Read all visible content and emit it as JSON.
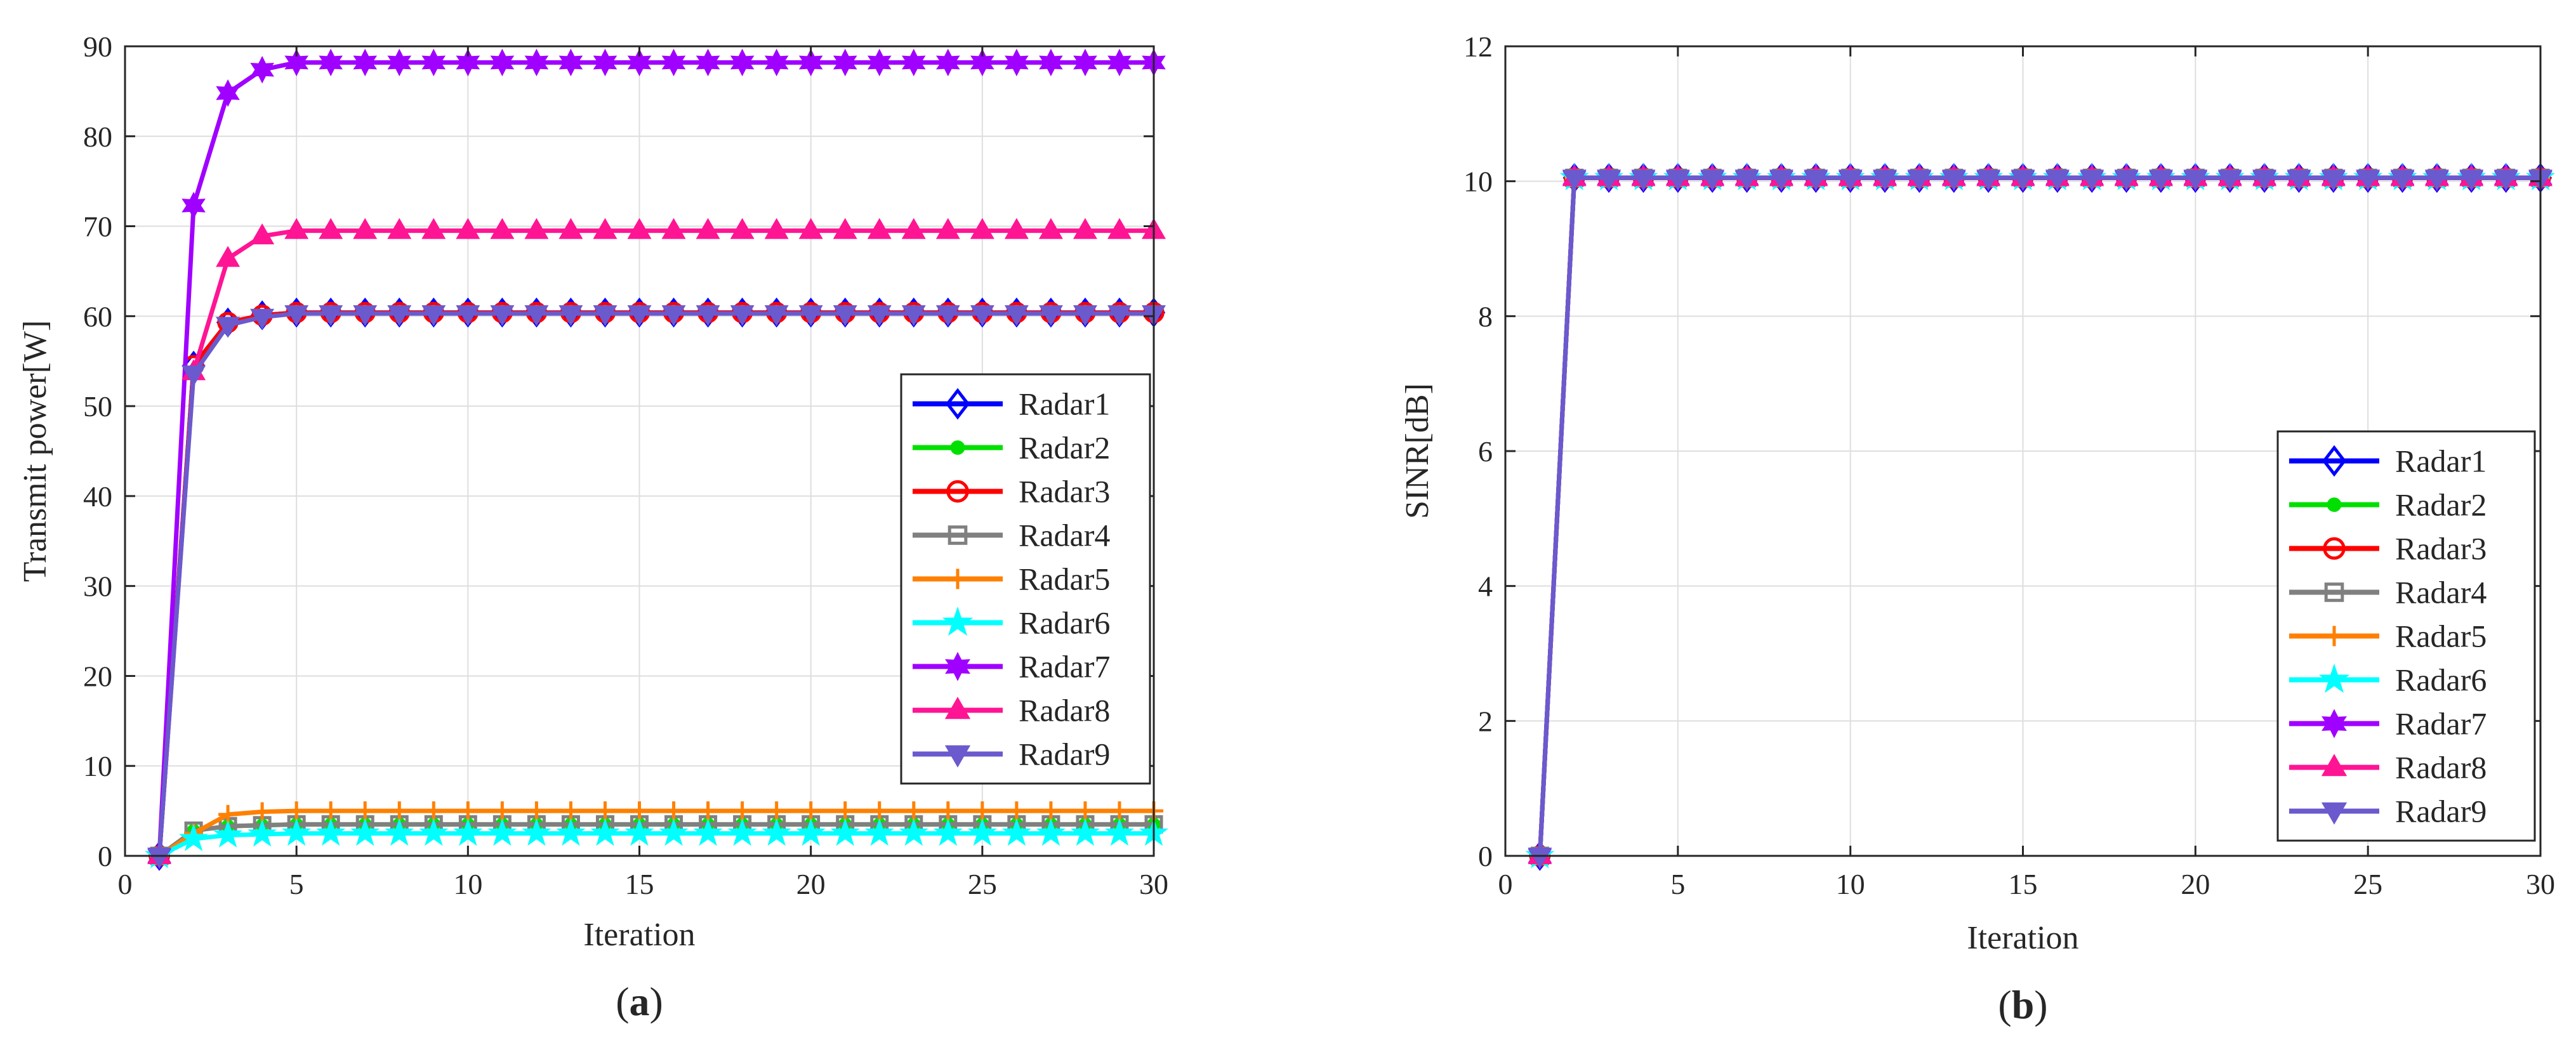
{
  "chart_data": [
    {
      "type": "line",
      "panel_label": "(a)",
      "panel_letter": "a",
      "xlabel": "Iteration",
      "ylabel": "Transmit power[W]",
      "xlim": [
        0,
        30
      ],
      "ylim": [
        0,
        90
      ],
      "xticks": [
        0,
        5,
        10,
        15,
        20,
        25,
        30
      ],
      "yticks": [
        0,
        10,
        20,
        30,
        40,
        50,
        60,
        70,
        80,
        90
      ],
      "grid": true,
      "legend_position": "center-right",
      "x": [
        1,
        2,
        3,
        4,
        5,
        6,
        7,
        8,
        9,
        10,
        11,
        12,
        13,
        14,
        15,
        16,
        17,
        18,
        19,
        20,
        21,
        22,
        23,
        24,
        25,
        26,
        27,
        28,
        29,
        30
      ],
      "series": [
        {
          "name": "Radar1",
          "color": "#0000ff",
          "marker": "diamond",
          "initial": [
            0,
            54.5,
            59.3,
            60.1
          ],
          "steady": 60.4
        },
        {
          "name": "Radar2",
          "color": "#00e000",
          "marker": "dot",
          "initial": [
            0,
            2.8,
            3.3,
            3.4
          ],
          "steady": 3.5
        },
        {
          "name": "Radar3",
          "color": "#ff0000",
          "marker": "circle",
          "initial": [
            0,
            54.5,
            59.3,
            60.1
          ],
          "steady": 60.4
        },
        {
          "name": "Radar4",
          "color": "#808080",
          "marker": "square",
          "initial": [
            0,
            2.8,
            3.3,
            3.4
          ],
          "steady": 3.5
        },
        {
          "name": "Radar5",
          "color": "#ff8000",
          "marker": "plus",
          "initial": [
            0,
            2.5,
            4.6,
            4.9
          ],
          "steady": 5.0
        },
        {
          "name": "Radar6",
          "color": "#00ffff",
          "marker": "star",
          "initial": [
            0,
            1.9,
            2.3,
            2.4
          ],
          "steady": 2.5
        },
        {
          "name": "Radar7",
          "color": "#a000ff",
          "marker": "hexstar",
          "initial": [
            0,
            72.3,
            84.8,
            87.4
          ],
          "steady": 88.2
        },
        {
          "name": "Radar8",
          "color": "#ff1493",
          "marker": "triangle-up",
          "initial": [
            0,
            53.8,
            66.4,
            68.9
          ],
          "steady": 69.5
        },
        {
          "name": "Radar9",
          "color": "#6a5acd",
          "marker": "triangle-down",
          "initial": [
            0,
            53.6,
            59.0,
            59.9
          ],
          "steady": 60.3
        }
      ]
    },
    {
      "type": "line",
      "panel_label": "(b)",
      "panel_letter": "b",
      "xlabel": "Iteration",
      "ylabel": "SINR[dB]",
      "xlim": [
        0,
        30
      ],
      "ylim": [
        0,
        12
      ],
      "xticks": [
        0,
        5,
        10,
        15,
        20,
        25,
        30
      ],
      "yticks": [
        0,
        2,
        4,
        6,
        8,
        10,
        12
      ],
      "grid": true,
      "legend_position": "bottom-right",
      "x": [
        1,
        2,
        3,
        4,
        5,
        6,
        7,
        8,
        9,
        10,
        11,
        12,
        13,
        14,
        15,
        16,
        17,
        18,
        19,
        20,
        21,
        22,
        23,
        24,
        25,
        26,
        27,
        28,
        29,
        30
      ],
      "series": [
        {
          "name": "Radar1",
          "color": "#0000ff",
          "marker": "diamond",
          "initial": [
            0
          ],
          "steady": 10.05
        },
        {
          "name": "Radar2",
          "color": "#00e000",
          "marker": "dot",
          "initial": [
            0
          ],
          "steady": 10.05
        },
        {
          "name": "Radar3",
          "color": "#ff0000",
          "marker": "circle",
          "initial": [
            0
          ],
          "steady": 10.05
        },
        {
          "name": "Radar4",
          "color": "#808080",
          "marker": "square",
          "initial": [
            0
          ],
          "steady": 10.05
        },
        {
          "name": "Radar5",
          "color": "#ff8000",
          "marker": "plus",
          "initial": [
            0
          ],
          "steady": 10.05
        },
        {
          "name": "Radar6",
          "color": "#00ffff",
          "marker": "star",
          "initial": [
            0
          ],
          "steady": 10.05
        },
        {
          "name": "Radar7",
          "color": "#a000ff",
          "marker": "hexstar",
          "initial": [
            0
          ],
          "steady": 10.05
        },
        {
          "name": "Radar8",
          "color": "#ff1493",
          "marker": "triangle-up",
          "initial": [
            0
          ],
          "steady": 10.05
        },
        {
          "name": "Radar9",
          "color": "#6a5acd",
          "marker": "triangle-down",
          "initial": [
            0
          ],
          "steady": 10.05
        }
      ]
    }
  ]
}
